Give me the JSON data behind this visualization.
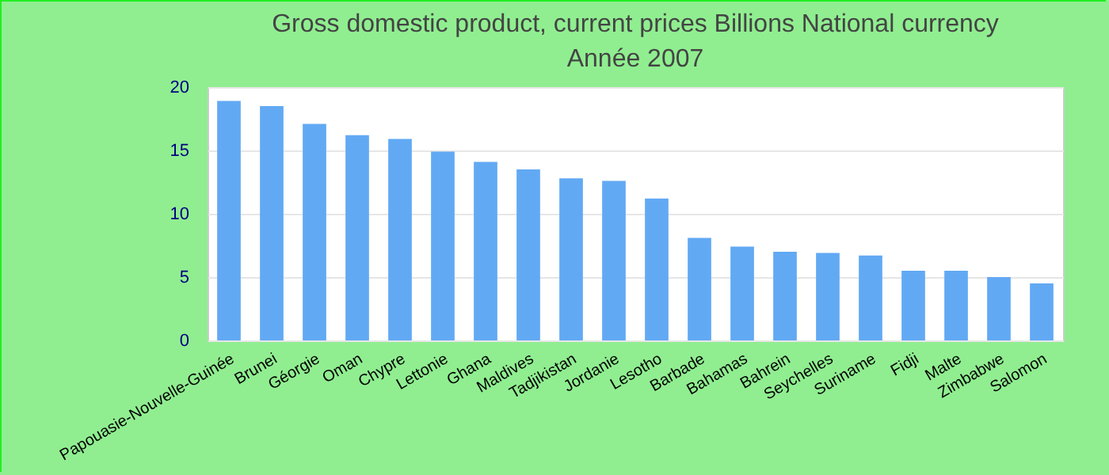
{
  "chart_data": {
    "type": "bar",
    "title": "Gross domestic product, current prices Billions National currency",
    "subtitle": "Année 2007",
    "categories": [
      "Papouasie-Nouvelle-Guinée",
      "Brunei",
      "Géorgie",
      "Oman",
      "Chypre",
      "Lettonie",
      "Ghana",
      "Maldives",
      "Tadjikistan",
      "Jordanie",
      "Lesotho",
      "Barbade",
      "Bahamas",
      "Bahrein",
      "Seychelles",
      "Suriname",
      "Fidji",
      "Malte",
      "Zimbabwe",
      "Salomon"
    ],
    "values": [
      18.9,
      18.5,
      17.1,
      16.2,
      15.9,
      14.9,
      14.1,
      13.5,
      12.8,
      12.6,
      11.2,
      8.1,
      7.4,
      7.0,
      6.9,
      6.7,
      5.5,
      5.5,
      5.0,
      4.5
    ],
    "color": "#62a9f4",
    "ylim": [
      0,
      20
    ],
    "yticks": [
      0,
      5,
      10,
      15,
      20
    ],
    "grid": "y"
  }
}
